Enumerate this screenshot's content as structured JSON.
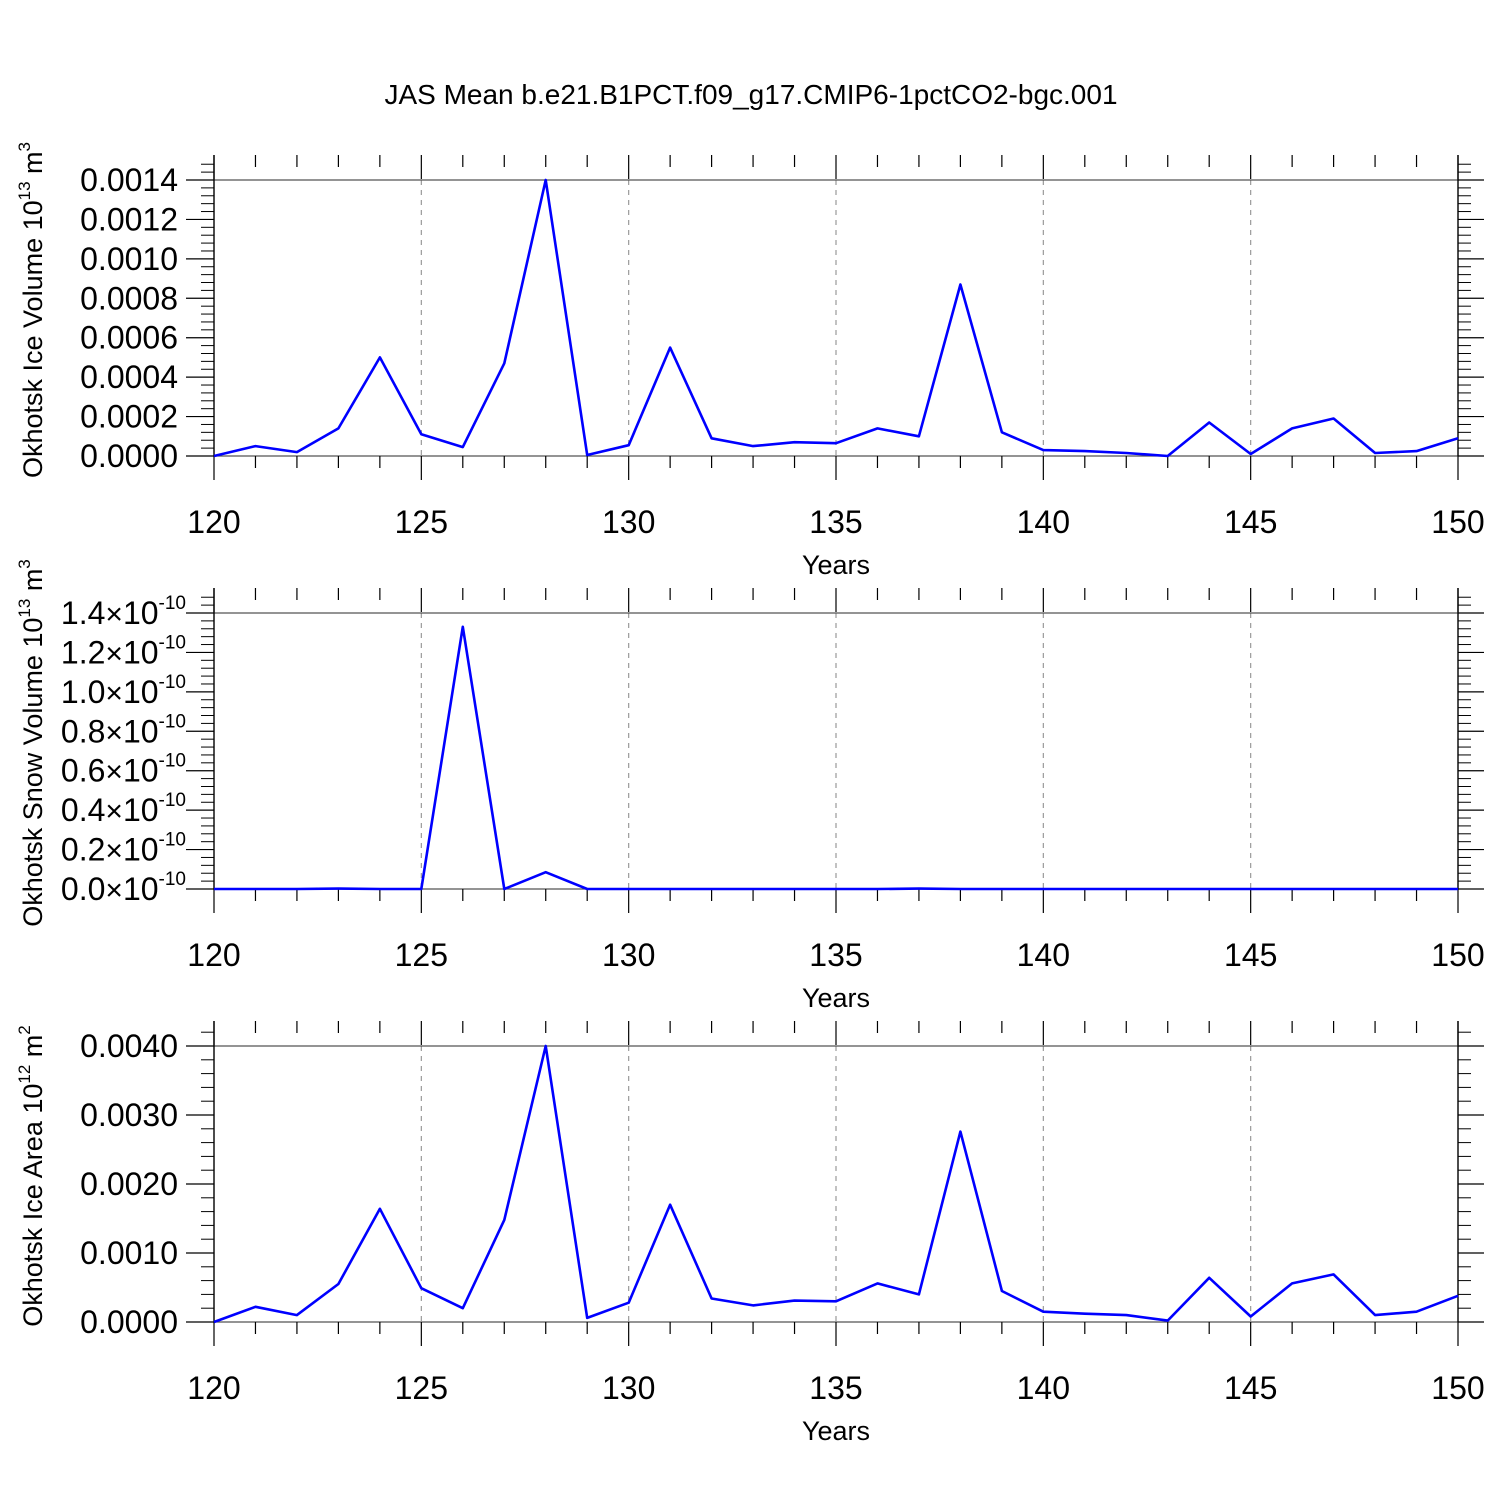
{
  "figure": {
    "title": "JAS Mean b.e21.B1PCT.f09_g17.CMIP6-1pctCO2-bgc.001"
  },
  "line_color": "#0000ff",
  "chart_data": [
    {
      "type": "line",
      "title": "",
      "xlabel": "Years",
      "ylabel": "Okhotsk Ice Volume 10",
      "ylabel_exp": "13",
      "ylabel_unit": "m",
      "ylabel_unit_exp": "3",
      "xlim": [
        120,
        150
      ],
      "ylim": [
        0,
        0.0014
      ],
      "grid": "vertical dashed at major x ticks",
      "x_ticks": [
        120,
        125,
        130,
        135,
        140,
        145,
        150
      ],
      "x_tick_labels": [
        "120",
        "125",
        "130",
        "135",
        "140",
        "145",
        "150"
      ],
      "y_ticks": [
        0,
        0.0002,
        0.0004,
        0.0006,
        0.0008,
        0.001,
        0.0012,
        0.0014
      ],
      "y_tick_labels": [
        "0.0000",
        "0.0002",
        "0.0004",
        "0.0006",
        "0.0008",
        "0.0010",
        "0.0012",
        "0.0014"
      ],
      "x": [
        120,
        121,
        122,
        123,
        124,
        125,
        126,
        127,
        128,
        129,
        130,
        131,
        132,
        133,
        134,
        135,
        136,
        137,
        138,
        139,
        140,
        141,
        142,
        143,
        144,
        145,
        146,
        147,
        148,
        149,
        150
      ],
      "values": [
        0.0,
        5e-05,
        2e-05,
        0.00014,
        0.0005,
        0.00011,
        4.5e-05,
        0.00047,
        0.0014,
        5e-06,
        5.5e-05,
        0.00055,
        9e-05,
        5e-05,
        7e-05,
        6.5e-05,
        0.00014,
        0.0001,
        0.00087,
        0.00012,
        3e-05,
        2.5e-05,
        1.5e-05,
        0.0,
        0.00017,
        1e-05,
        0.00014,
        0.00019,
        1.5e-05,
        2.5e-05,
        9e-05
      ]
    },
    {
      "type": "line",
      "title": "",
      "xlabel": "Years",
      "ylabel": "Okhotsk Snow Volume 10",
      "ylabel_exp": "13",
      "ylabel_unit": "m",
      "ylabel_unit_exp": "3",
      "xlim": [
        120,
        150
      ],
      "ylim": [
        0,
        1.4e-10
      ],
      "grid": "vertical dashed at major x ticks",
      "x_ticks": [
        120,
        125,
        130,
        135,
        140,
        145,
        150
      ],
      "x_tick_labels": [
        "120",
        "125",
        "130",
        "135",
        "140",
        "145",
        "150"
      ],
      "y_ticks": [
        0,
        2e-11,
        4e-11,
        6e-11,
        8e-11,
        1e-10,
        1.2e-10,
        1.4e-10
      ],
      "y_tick_mantissas": [
        "0.0",
        "0.2",
        "0.4",
        "0.6",
        "0.8",
        "1.0",
        "1.2",
        "1.4"
      ],
      "y_tick_times": "×",
      "y_tick_base": "10",
      "y_tick_exp": "-10",
      "x": [
        120,
        121,
        122,
        123,
        124,
        125,
        126,
        127,
        128,
        129,
        130,
        131,
        132,
        133,
        134,
        135,
        136,
        137,
        138,
        139,
        140,
        141,
        142,
        143,
        144,
        145,
        146,
        147,
        148,
        149,
        150
      ],
      "values": [
        0,
        0,
        0,
        2e-13,
        0,
        0,
        1.33e-10,
        0,
        8.5e-12,
        0,
        0,
        0,
        0,
        0,
        0,
        0,
        0,
        2e-13,
        0,
        0,
        0,
        0,
        0,
        0,
        0,
        0,
        0,
        0,
        0,
        0,
        0
      ]
    },
    {
      "type": "line",
      "title": "",
      "xlabel": "Years",
      "ylabel": "Okhotsk Ice Area 10",
      "ylabel_exp": "12",
      "ylabel_unit": "m",
      "ylabel_unit_exp": "2",
      "xlim": [
        120,
        150
      ],
      "ylim": [
        0,
        0.004
      ],
      "grid": "vertical dashed at major x ticks",
      "x_ticks": [
        120,
        125,
        130,
        135,
        140,
        145,
        150
      ],
      "x_tick_labels": [
        "120",
        "125",
        "130",
        "135",
        "140",
        "145",
        "150"
      ],
      "y_ticks": [
        0,
        0.001,
        0.002,
        0.003,
        0.004
      ],
      "y_tick_labels": [
        "0.0000",
        "0.0010",
        "0.0020",
        "0.0030",
        "0.0040"
      ],
      "x": [
        120,
        121,
        122,
        123,
        124,
        125,
        126,
        127,
        128,
        129,
        130,
        131,
        132,
        133,
        134,
        135,
        136,
        137,
        138,
        139,
        140,
        141,
        142,
        143,
        144,
        145,
        146,
        147,
        148,
        149,
        150
      ],
      "values": [
        0.0,
        0.00022,
        0.0001,
        0.00055,
        0.00164,
        0.00049,
        0.0002,
        0.00148,
        0.004,
        6e-05,
        0.00028,
        0.0017,
        0.00034,
        0.00024,
        0.00031,
        0.0003,
        0.00056,
        0.0004,
        0.00276,
        0.00045,
        0.00015,
        0.00012,
        0.0001,
        2e-05,
        0.00064,
        8e-05,
        0.00056,
        0.00069,
        0.0001,
        0.00015,
        0.00038
      ]
    }
  ]
}
